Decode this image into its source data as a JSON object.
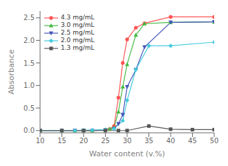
{
  "chart_data": {
    "type": "line",
    "title": "",
    "xlabel": "Water content (v.%)",
    "ylabel": "Absorbance",
    "xlim": [
      10,
      50
    ],
    "ylim": [
      -0.05,
      2.65
    ],
    "xticks": [
      10,
      15,
      20,
      25,
      30,
      35,
      40,
      45,
      50
    ],
    "yticks": [
      {
        "value": 0.0,
        "label": "0.0"
      },
      0.5,
      {
        "value": 1.0,
        "label": "1.0"
      },
      1.5,
      {
        "value": 2.0,
        "label": "2.0"
      },
      2.5
    ],
    "grid": false,
    "legend": "upper left",
    "series": [
      {
        "name": "4.3 mg/mL",
        "color": "#FF5555",
        "marker": "circle",
        "line_style": "solid",
        "x": [
          10,
          15,
          18,
          20,
          22,
          25,
          26,
          27,
          28,
          29,
          30,
          32,
          34,
          40,
          50
        ],
        "values": [
          0.0,
          0.0,
          0.0,
          0.0,
          0.0,
          0.01,
          0.03,
          0.1,
          0.73,
          1.5,
          2.02,
          2.28,
          2.38,
          2.52,
          2.52
        ]
      },
      {
        "name": "3.0 mg/mL",
        "color": "#44BB44",
        "marker": "triangle-up",
        "line_style": "solid",
        "x": [
          10,
          15,
          18,
          20,
          22,
          25,
          26,
          27,
          28,
          29,
          30,
          32,
          34,
          40,
          50
        ],
        "values": [
          0.0,
          0.0,
          0.0,
          0.0,
          0.0,
          0.02,
          0.04,
          0.07,
          0.42,
          0.97,
          1.47,
          2.12,
          2.37,
          2.4,
          2.41
        ]
      },
      {
        "name": "2.5 mg/mL",
        "color": "#4455BB",
        "marker": "triangle-down",
        "line_style": "solid",
        "x": [
          10,
          15,
          18,
          20,
          22,
          25,
          27,
          28,
          29,
          30,
          32,
          34,
          40,
          50
        ],
        "values": [
          0.0,
          0.0,
          0.0,
          0.0,
          0.0,
          0.01,
          0.04,
          0.15,
          0.35,
          0.97,
          1.35,
          1.85,
          2.4,
          2.41
        ]
      },
      {
        "name": "2.0 mg/mL",
        "color": "#44CCDD",
        "marker": "diamond",
        "line_style": "solid",
        "x": [
          10,
          15,
          18,
          20,
          22,
          25,
          27,
          29,
          30,
          32,
          35,
          40,
          50
        ],
        "values": [
          0.0,
          0.0,
          0.0,
          0.01,
          0.01,
          0.02,
          0.04,
          0.22,
          0.67,
          1.35,
          1.88,
          1.88,
          1.96
        ]
      },
      {
        "name": "1.3 mg/mL",
        "color": "#555555",
        "marker": "square",
        "line_style": "solid",
        "x": [
          10,
          15,
          20,
          25,
          28,
          30,
          35,
          40,
          45,
          50
        ],
        "values": [
          0.0,
          0.0,
          0.0,
          0.0,
          0.0,
          0.0,
          0.1,
          0.03,
          0.02,
          0.02
        ]
      }
    ]
  }
}
